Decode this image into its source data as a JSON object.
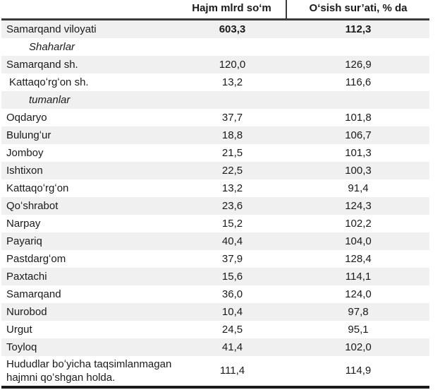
{
  "header": {
    "col_volume": "Hajm mlrd soʻm",
    "col_growth": "Oʻsish sur’ati, % da"
  },
  "rows": [
    {
      "name": "Samarqand viloyati",
      "volume": "603,3",
      "growth": "112,3",
      "kind": "total",
      "shaded": true
    },
    {
      "name": "Shaharlar",
      "volume": "",
      "growth": "",
      "kind": "section",
      "shaded": false
    },
    {
      "name": "Samarqand sh.",
      "volume": "120,0",
      "growth": "126,9",
      "kind": "city",
      "shaded": true
    },
    {
      "name": "Kattaqoʻrgʻon sh.",
      "volume": "13,2",
      "growth": "116,6",
      "kind": "city-indent",
      "shaded": false
    },
    {
      "name": "tumanlar",
      "volume": "",
      "growth": "",
      "kind": "section",
      "shaded": true
    },
    {
      "name": "Oqdaryo",
      "volume": "37,7",
      "growth": "101,8",
      "kind": "district",
      "shaded": false
    },
    {
      "name": "Bulungʻur",
      "volume": "18,8",
      "growth": "106,7",
      "kind": "district",
      "shaded": true
    },
    {
      "name": "Jomboy",
      "volume": "21,5",
      "growth": "101,3",
      "kind": "district",
      "shaded": false
    },
    {
      "name": "Ishtixon",
      "volume": "22,5",
      "growth": "100,3",
      "kind": "district",
      "shaded": true
    },
    {
      "name": "Kattaqoʻrgʻon",
      "volume": "13,2",
      "growth": "91,4",
      "kind": "district",
      "shaded": false
    },
    {
      "name": "Qoʻshrabot",
      "volume": "23,6",
      "growth": "124,3",
      "kind": "district",
      "shaded": true
    },
    {
      "name": "Narpay",
      "volume": "15,2",
      "growth": "102,2",
      "kind": "district",
      "shaded": false
    },
    {
      "name": "Payariq",
      "volume": "40,4",
      "growth": "104,0",
      "kind": "district",
      "shaded": true
    },
    {
      "name": "Pastdargʻom",
      "volume": "37,9",
      "growth": "128,4",
      "kind": "district",
      "shaded": false
    },
    {
      "name": "Paxtachi",
      "volume": "15,6",
      "growth": "114,1",
      "kind": "district",
      "shaded": true
    },
    {
      "name": "Samarqand",
      "volume": "36,0",
      "growth": "124,0",
      "kind": "district",
      "shaded": false
    },
    {
      "name": "Nurobod",
      "volume": "10,4",
      "growth": "97,8",
      "kind": "district",
      "shaded": true
    },
    {
      "name": "Urgut",
      "volume": "24,5",
      "growth": "95,1",
      "kind": "district",
      "shaded": false
    },
    {
      "name": "Toyloq",
      "volume": "41,4",
      "growth": "102,0",
      "kind": "district",
      "shaded": true
    },
    {
      "name": "Hududlar boʻyicha taqsimlanmagan hajmni qoʻshgan holda.",
      "volume": "111,4",
      "growth": "114,9",
      "kind": "footer",
      "shaded": false
    }
  ],
  "colors": {
    "shaded_row": "#f0f0f0",
    "header_rule": "#3a3a3a",
    "bottom_rule": "#1a1a1a",
    "text": "#1a1a1a"
  }
}
